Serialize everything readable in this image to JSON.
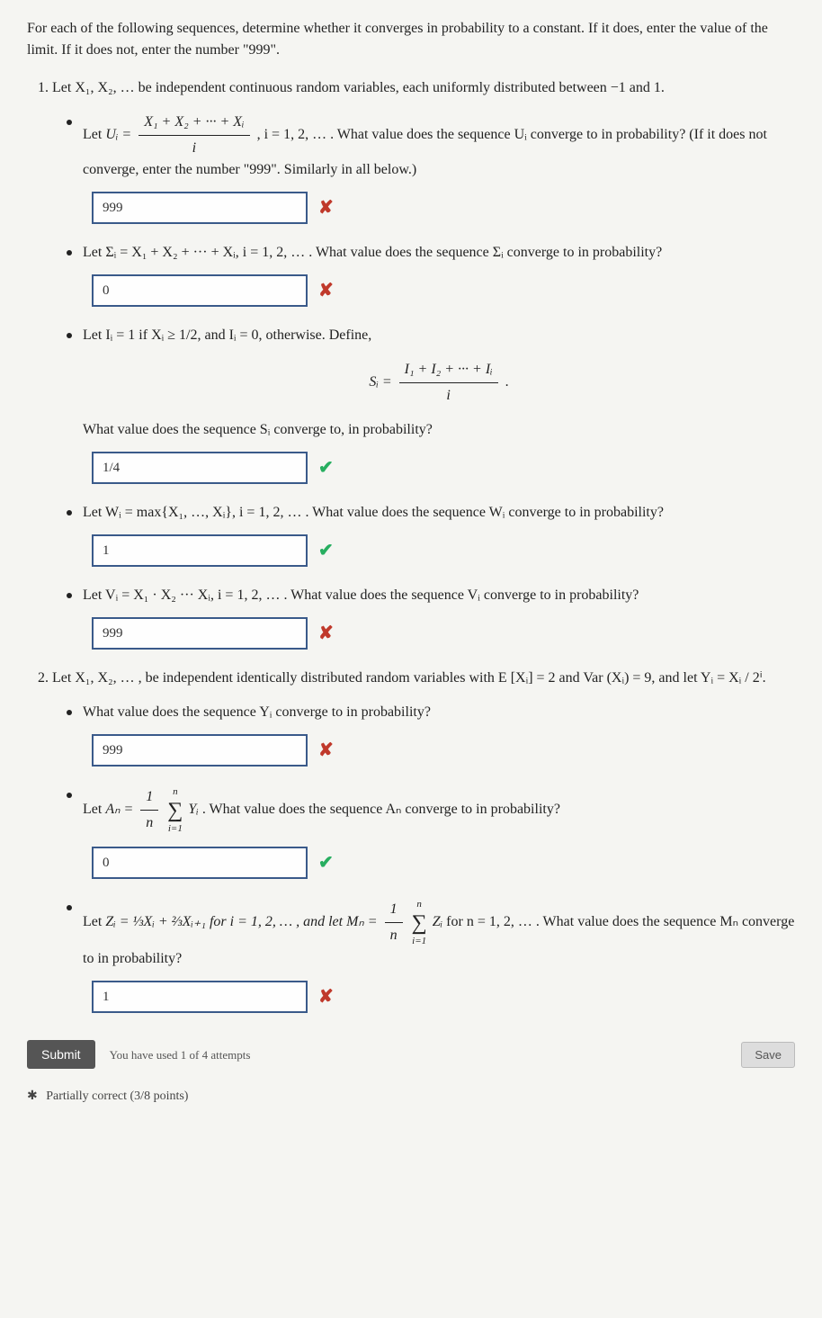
{
  "intro": "For each of the following sequences, determine whether it converges in probability to a constant. If it does, enter the value of the limit. If it does not, enter the number \"999\".",
  "q1": {
    "lead": "Let X₁, X₂, … be independent continuous random variables, each uniformly distributed between −1 and 1.",
    "parts": {
      "u": {
        "pre": "Let ",
        "def_lhs": "Uᵢ =",
        "num": "X₁ + X₂ + ··· + Xᵢ",
        "den": "i",
        "post": ", i = 1, 2, … . What value does the sequence Uᵢ converge to in probability? (If it does not converge, enter the number \"999\". Similarly in all below.)",
        "answer": "999",
        "correct": false
      },
      "sigma": {
        "text": "Let Σᵢ = X₁ + X₂ + ··· + Xᵢ, i = 1, 2, … . What value does the sequence Σᵢ converge to in probability?",
        "answer": "0",
        "correct": false
      },
      "s": {
        "intro": "Let Iᵢ = 1 if Xᵢ ≥ 1/2, and Iᵢ = 0, otherwise. Define,",
        "def_lhs": "Sᵢ =",
        "num": "I₁ + I₂ + ··· + Iᵢ",
        "den": "i",
        "period": ".",
        "question": "What value does the sequence Sᵢ converge to, in probability?",
        "answer": "1/4",
        "correct": true
      },
      "w": {
        "text": "Let Wᵢ = max{X₁, …, Xᵢ}, i = 1, 2, … . What value does the sequence Wᵢ converge to in probability?",
        "answer": "1",
        "correct": true
      },
      "v": {
        "text": "Let Vᵢ = X₁ · X₂ ··· Xᵢ, i = 1, 2, … . What value does the sequence Vᵢ converge to in probability?",
        "answer": "999",
        "correct": false
      }
    }
  },
  "q2": {
    "lead": "Let X₁, X₂, … , be independent identically distributed random variables with E [Xᵢ] = 2 and Var (Xᵢ) = 9, and let Yᵢ = Xᵢ / 2ⁱ.",
    "parts": {
      "y": {
        "text": "What value does the sequence Yᵢ converge to in probability?",
        "answer": "999",
        "correct": false
      },
      "a": {
        "pre": "Let ",
        "lhs": "Aₙ = ",
        "frac_num": "1",
        "frac_den": "n",
        "sum_top": "n",
        "sum_bot": "i=1",
        "sum_body": "Yᵢ",
        "post": ". What value does the sequence Aₙ converge to in probability?",
        "answer": "0",
        "correct": true
      },
      "z": {
        "pre": "Let ",
        "z_def": "Zᵢ = ⅓Xᵢ + ⅔Xᵢ₊₁ for i = 1, 2, … , and let Mₙ = ",
        "frac_num": "1",
        "frac_den": "n",
        "sum_top": "n",
        "sum_bot": "i=1",
        "sum_body": "Zᵢ",
        "post1": " for n = 1, 2, … . What value does the sequence Mₙ converge to in probability?",
        "answer": "1",
        "correct": false
      }
    }
  },
  "footer": {
    "submit": "Submit",
    "attempts": "You have used 1 of 4 attempts",
    "save": "Save",
    "partial": "Partially correct (3/8 points)"
  },
  "marks": {
    "wrong": "✘",
    "correct": "✔"
  }
}
